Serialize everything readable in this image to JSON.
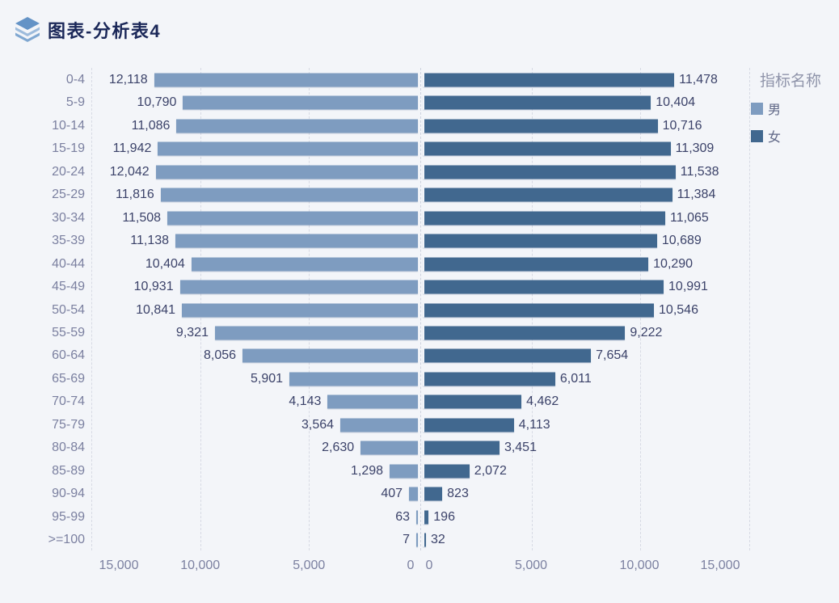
{
  "header": {
    "title": "图表-分析表4",
    "icon": "layers-icon"
  },
  "legend": {
    "title": "指标名称",
    "items": [
      {
        "label": "男",
        "color": "#7e9cc0"
      },
      {
        "label": "女",
        "color": "#41688f"
      }
    ]
  },
  "chart_data": {
    "type": "bar",
    "subtype": "population-pyramid",
    "title": "图表-分析表4",
    "legend_title": "指标名称",
    "legend_position": "right",
    "grid": true,
    "categories": [
      "0-4",
      "5-9",
      "10-14",
      "15-19",
      "20-24",
      "25-29",
      "30-34",
      "35-39",
      "40-44",
      "45-49",
      "50-54",
      "55-59",
      "60-64",
      "65-69",
      "70-74",
      "75-79",
      "80-84",
      "85-89",
      "90-94",
      "95-99",
      ">=100"
    ],
    "series": [
      {
        "name": "男",
        "side": "left",
        "color": "#7e9cc0",
        "values": [
          12118,
          10790,
          11086,
          11942,
          12042,
          11816,
          11508,
          11138,
          10404,
          10931,
          10841,
          9321,
          8056,
          5901,
          4143,
          3564,
          2630,
          1298,
          407,
          63,
          7
        ]
      },
      {
        "name": "女",
        "side": "right",
        "color": "#41688f",
        "values": [
          11478,
          10404,
          10716,
          11309,
          11538,
          11384,
          11065,
          10689,
          10290,
          10991,
          10546,
          9222,
          7654,
          6011,
          4462,
          4113,
          3451,
          2072,
          823,
          196,
          32
        ]
      }
    ],
    "x_axis": {
      "max": 15000,
      "interval": 5000,
      "left_tick_labels": [
        "15,000",
        "10,000",
        "5,000",
        "0"
      ],
      "right_tick_labels": [
        "0",
        "5,000",
        "10,000",
        "15,000"
      ]
    }
  },
  "colors": {
    "background": "#f3f5f9",
    "title_text": "#1a2758",
    "axis_label": "#7b80a0",
    "value_label": "#3b4269",
    "grid_line": "#d7dae4",
    "legend_title": "#8f94aa",
    "legend_label": "#5f6786"
  }
}
